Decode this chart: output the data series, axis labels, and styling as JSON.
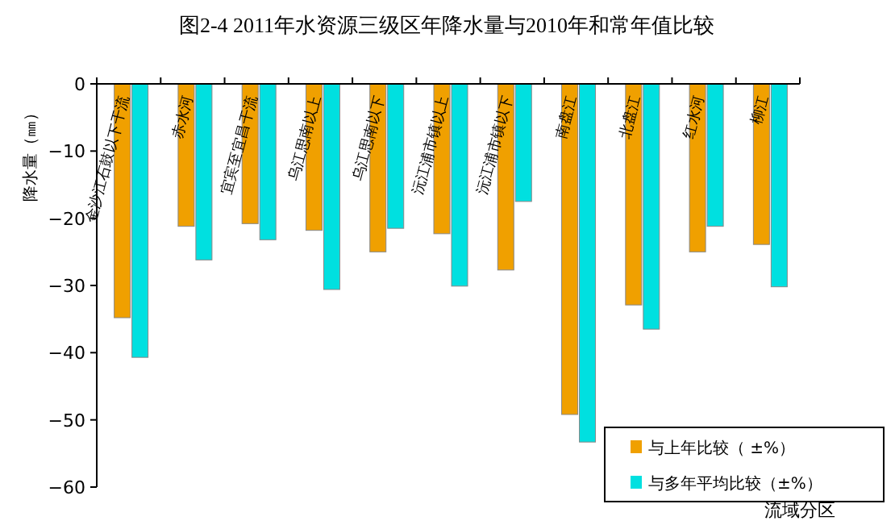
{
  "chart_data": {
    "type": "bar",
    "title": "图2-4    2011年水资源三级区年降水量与2010年和常年值比较",
    "ylabel": "降水量（㎜）",
    "xlabel": "流域分区",
    "categories": [
      "金沙江石鼓以下干流",
      "赤水河",
      "宜宾至宜昌干流",
      "乌江思南以上",
      "乌江思南以下",
      "沅江浦市镇以上",
      "沅江浦市镇以下",
      "南盘江",
      "北盘江",
      "红水河",
      "柳江"
    ],
    "series": [
      {
        "name": "与上年比较（ ±%）",
        "color": "#f0a000",
        "values": [
          -34.8,
          -21.2,
          -20.8,
          -21.8,
          -25.0,
          -22.3,
          -27.7,
          -49.2,
          -32.9,
          -25.0,
          -23.9
        ]
      },
      {
        "name": "与多年平均比较（±%）",
        "color": "#00e0e0",
        "values": [
          -40.7,
          -26.2,
          -23.2,
          -30.6,
          -21.5,
          -30.1,
          -17.5,
          -53.3,
          -36.5,
          -21.2,
          -30.2
        ]
      }
    ],
    "ylim": [
      -60,
      0
    ],
    "yticks": [
      0,
      -10,
      -20,
      -30,
      -40,
      -50,
      -60
    ],
    "legend": "bottom right",
    "grid": false
  }
}
